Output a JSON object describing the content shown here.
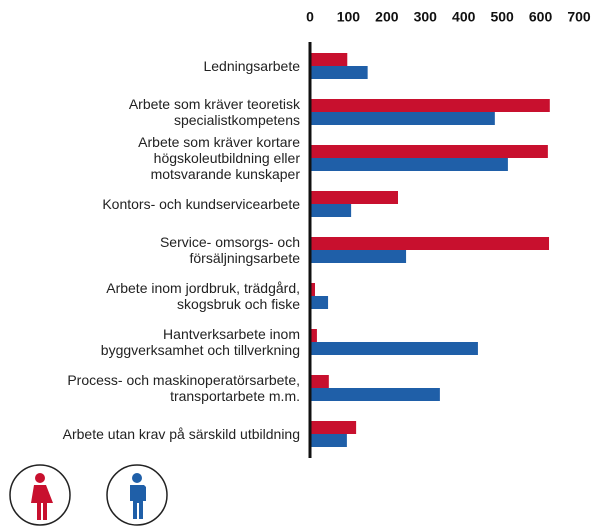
{
  "chart_data": {
    "type": "bar",
    "orientation": "horizontal",
    "categories": [
      "Ledningsarbete",
      "Arbete som kräver teoretisk\nspecialistkompetens",
      "Arbete som kräver kortare\nhögskoleutbildning eller\nmotsvarande kunskaper",
      "Kontors- och kundservicearbete",
      "Service- omsorgs- och\nförsäljningsarbete",
      "Arbete inom jordbruk, trädgård,\nskogsbruk och fiske",
      "Hantverksarbete inom\nbyggverksamhet och tillverkning",
      "Process- och maskinoperatörsarbete,\ntransportarbete m.m.",
      "Arbete utan krav på särskild utbildning"
    ],
    "series": [
      {
        "color": "#c8102e",
        "values": [
          97,
          624,
          619,
          229,
          622,
          13,
          18,
          49,
          120
        ]
      },
      {
        "color": "#1f5fa8",
        "values": [
          150,
          481,
          515,
          107,
          250,
          47,
          437,
          338,
          96
        ]
      }
    ],
    "xlim": [
      0,
      700
    ],
    "xticks": [
      0,
      100,
      200,
      300,
      400,
      500,
      600,
      700
    ]
  }
}
